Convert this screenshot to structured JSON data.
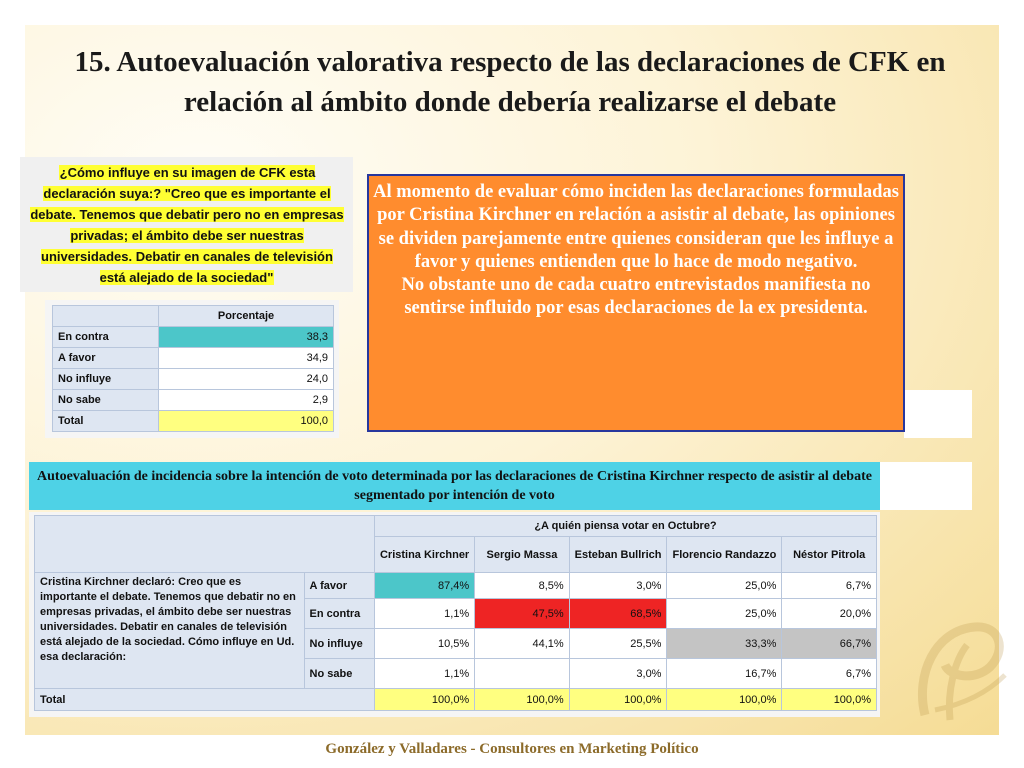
{
  "title": "15. Autoevaluación valorativa respecto de las declaraciones de CFK en relación al ámbito donde debería realizarse el debate",
  "question": "¿Cómo influye en su imagen de CFK esta declaración suya:? \"Creo que es importante el debate. Tenemos que debatir pero no en empresas privadas; el ámbito debe ser nuestras universidades. Debatir en canales de televisión está alejado de la sociedad\"",
  "summary_table": {
    "header": "Porcentaje",
    "rows": [
      {
        "label": "En contra",
        "value": "38,3"
      },
      {
        "label": "A favor",
        "value": "34,9"
      },
      {
        "label": "No influye",
        "value": "24,0"
      },
      {
        "label": "No sabe",
        "value": "2,9"
      },
      {
        "label": "Total",
        "value": "100,0"
      }
    ]
  },
  "analysis": "Al momento de evaluar cómo inciden las declaraciones formuladas por Cristina Kirchner en relación a asistir al debate, las opiniones se dividen parejamente entre quienes consideran que les influye a favor y quienes entienden que lo hace de modo negativo.\nNo obstante uno de cada cuatro entrevistados manifiesta no sentirse influido por esas declaraciones de la ex presidenta.",
  "crosstab_title": "Autoevaluación de incidencia sobre la intención de voto determinada por las declaraciones de Cristina Kirchner respecto de asistir al debate segmentado por intención de voto",
  "crosstab": {
    "group_header": "¿A quién piensa votar en Octubre?",
    "columns": [
      "Cristina Kirchner",
      "Sergio Massa",
      "Esteban Bullrich",
      "Florencio Randazzo",
      "Néstor Pitrola"
    ],
    "row_label": "Cristina Kirchner declaró: Creo que es importante el debate. Tenemos que debatir no en empresas privadas, el ámbito debe ser nuestras universidades. Debatir en canales de televisión está alejado de la sociedad. Cómo influye en Ud. esa declaración:",
    "rows": [
      {
        "label": "A favor",
        "values": [
          "87,4%",
          "8,5%",
          "3,0%",
          "25,0%",
          "6,7%"
        ]
      },
      {
        "label": "En contra",
        "values": [
          "1,1%",
          "47,5%",
          "68,5%",
          "25,0%",
          "20,0%"
        ]
      },
      {
        "label": "No influye",
        "values": [
          "10,5%",
          "44,1%",
          "25,5%",
          "33,3%",
          "66,7%"
        ]
      },
      {
        "label": "No sabe",
        "values": [
          "1,1%",
          "",
          "3,0%",
          "16,7%",
          "6,7%"
        ]
      }
    ],
    "total": {
      "label": "Total",
      "values": [
        "100,0%",
        "100,0%",
        "100,0%",
        "100,0%",
        "100,0%"
      ]
    }
  },
  "footer": "González y Valladares - Consultores en Marketing Político",
  "colors": {
    "orange_box": "#ff8c2e",
    "orange_border": "#27379d",
    "cyan_title": "#4ed2e6",
    "highlight_teal": "#4cc6c9",
    "highlight_yellow": "#ffff80",
    "highlight_red": "#ee2424",
    "highlight_gray": "#c4c4c4",
    "question_highlight": "#ffff33",
    "footer_text": "#8c6b2a"
  }
}
